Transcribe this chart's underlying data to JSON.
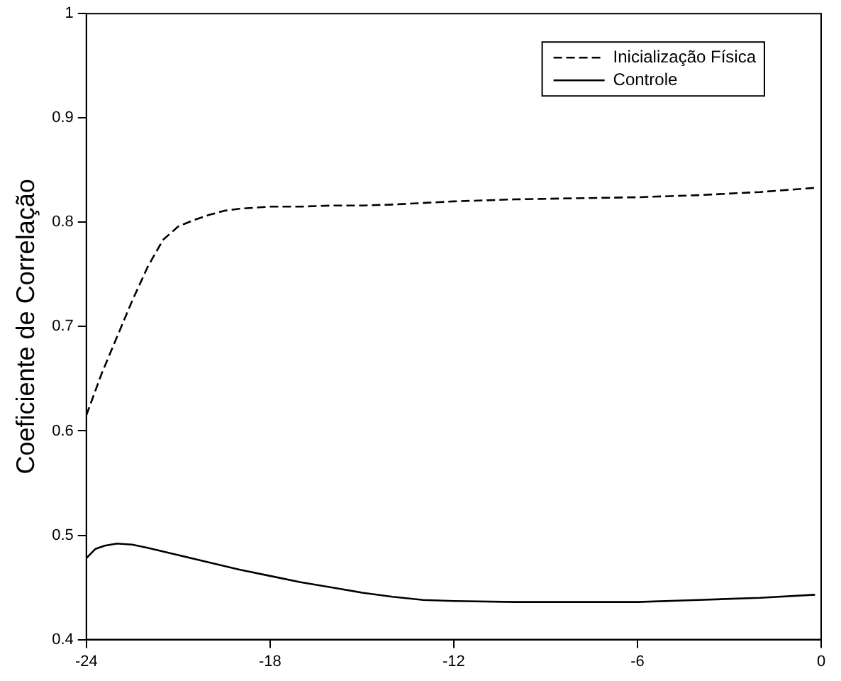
{
  "chart_data": {
    "type": "line",
    "ylabel": "Coeficiente de Correlação",
    "xlim": [
      -24,
      0
    ],
    "ylim": [
      0.4,
      1
    ],
    "xticks": [
      -24,
      -18,
      -12,
      -6,
      0
    ],
    "yticks": [
      0.4,
      0.5,
      0.6,
      0.7,
      0.8,
      0.9,
      1
    ],
    "grid": false,
    "legend": "top right",
    "marker": "none",
    "series": [
      {
        "name": "Inicialização Física",
        "color": "#000000",
        "line_style": "dashed",
        "x": [
          -24,
          -23.5,
          -23,
          -22.5,
          -22,
          -21.5,
          -21,
          -20.5,
          -20,
          -19.5,
          -19,
          -18,
          -17,
          -16,
          -15,
          -14,
          -12,
          -10,
          -8,
          -6,
          -4,
          -2,
          -0.2
        ],
        "values": [
          0.615,
          0.655,
          0.69,
          0.725,
          0.757,
          0.783,
          0.796,
          0.802,
          0.807,
          0.811,
          0.813,
          0.815,
          0.815,
          0.816,
          0.816,
          0.817,
          0.82,
          0.822,
          0.823,
          0.824,
          0.826,
          0.829,
          0.833
        ]
      },
      {
        "name": "Controle",
        "color": "#000000",
        "line_style": "solid",
        "x": [
          -24,
          -23.7,
          -23.4,
          -23,
          -22.5,
          -22,
          -21,
          -20,
          -19,
          -18,
          -17,
          -16,
          -15,
          -14,
          -13,
          -12,
          -10,
          -8,
          -6,
          -4,
          -2,
          -0.2
        ],
        "values": [
          0.478,
          0.487,
          0.49,
          0.492,
          0.491,
          0.488,
          0.481,
          0.474,
          0.467,
          0.461,
          0.455,
          0.45,
          0.445,
          0.441,
          0.438,
          0.437,
          0.436,
          0.436,
          0.436,
          0.438,
          0.44,
          0.443
        ]
      }
    ]
  }
}
